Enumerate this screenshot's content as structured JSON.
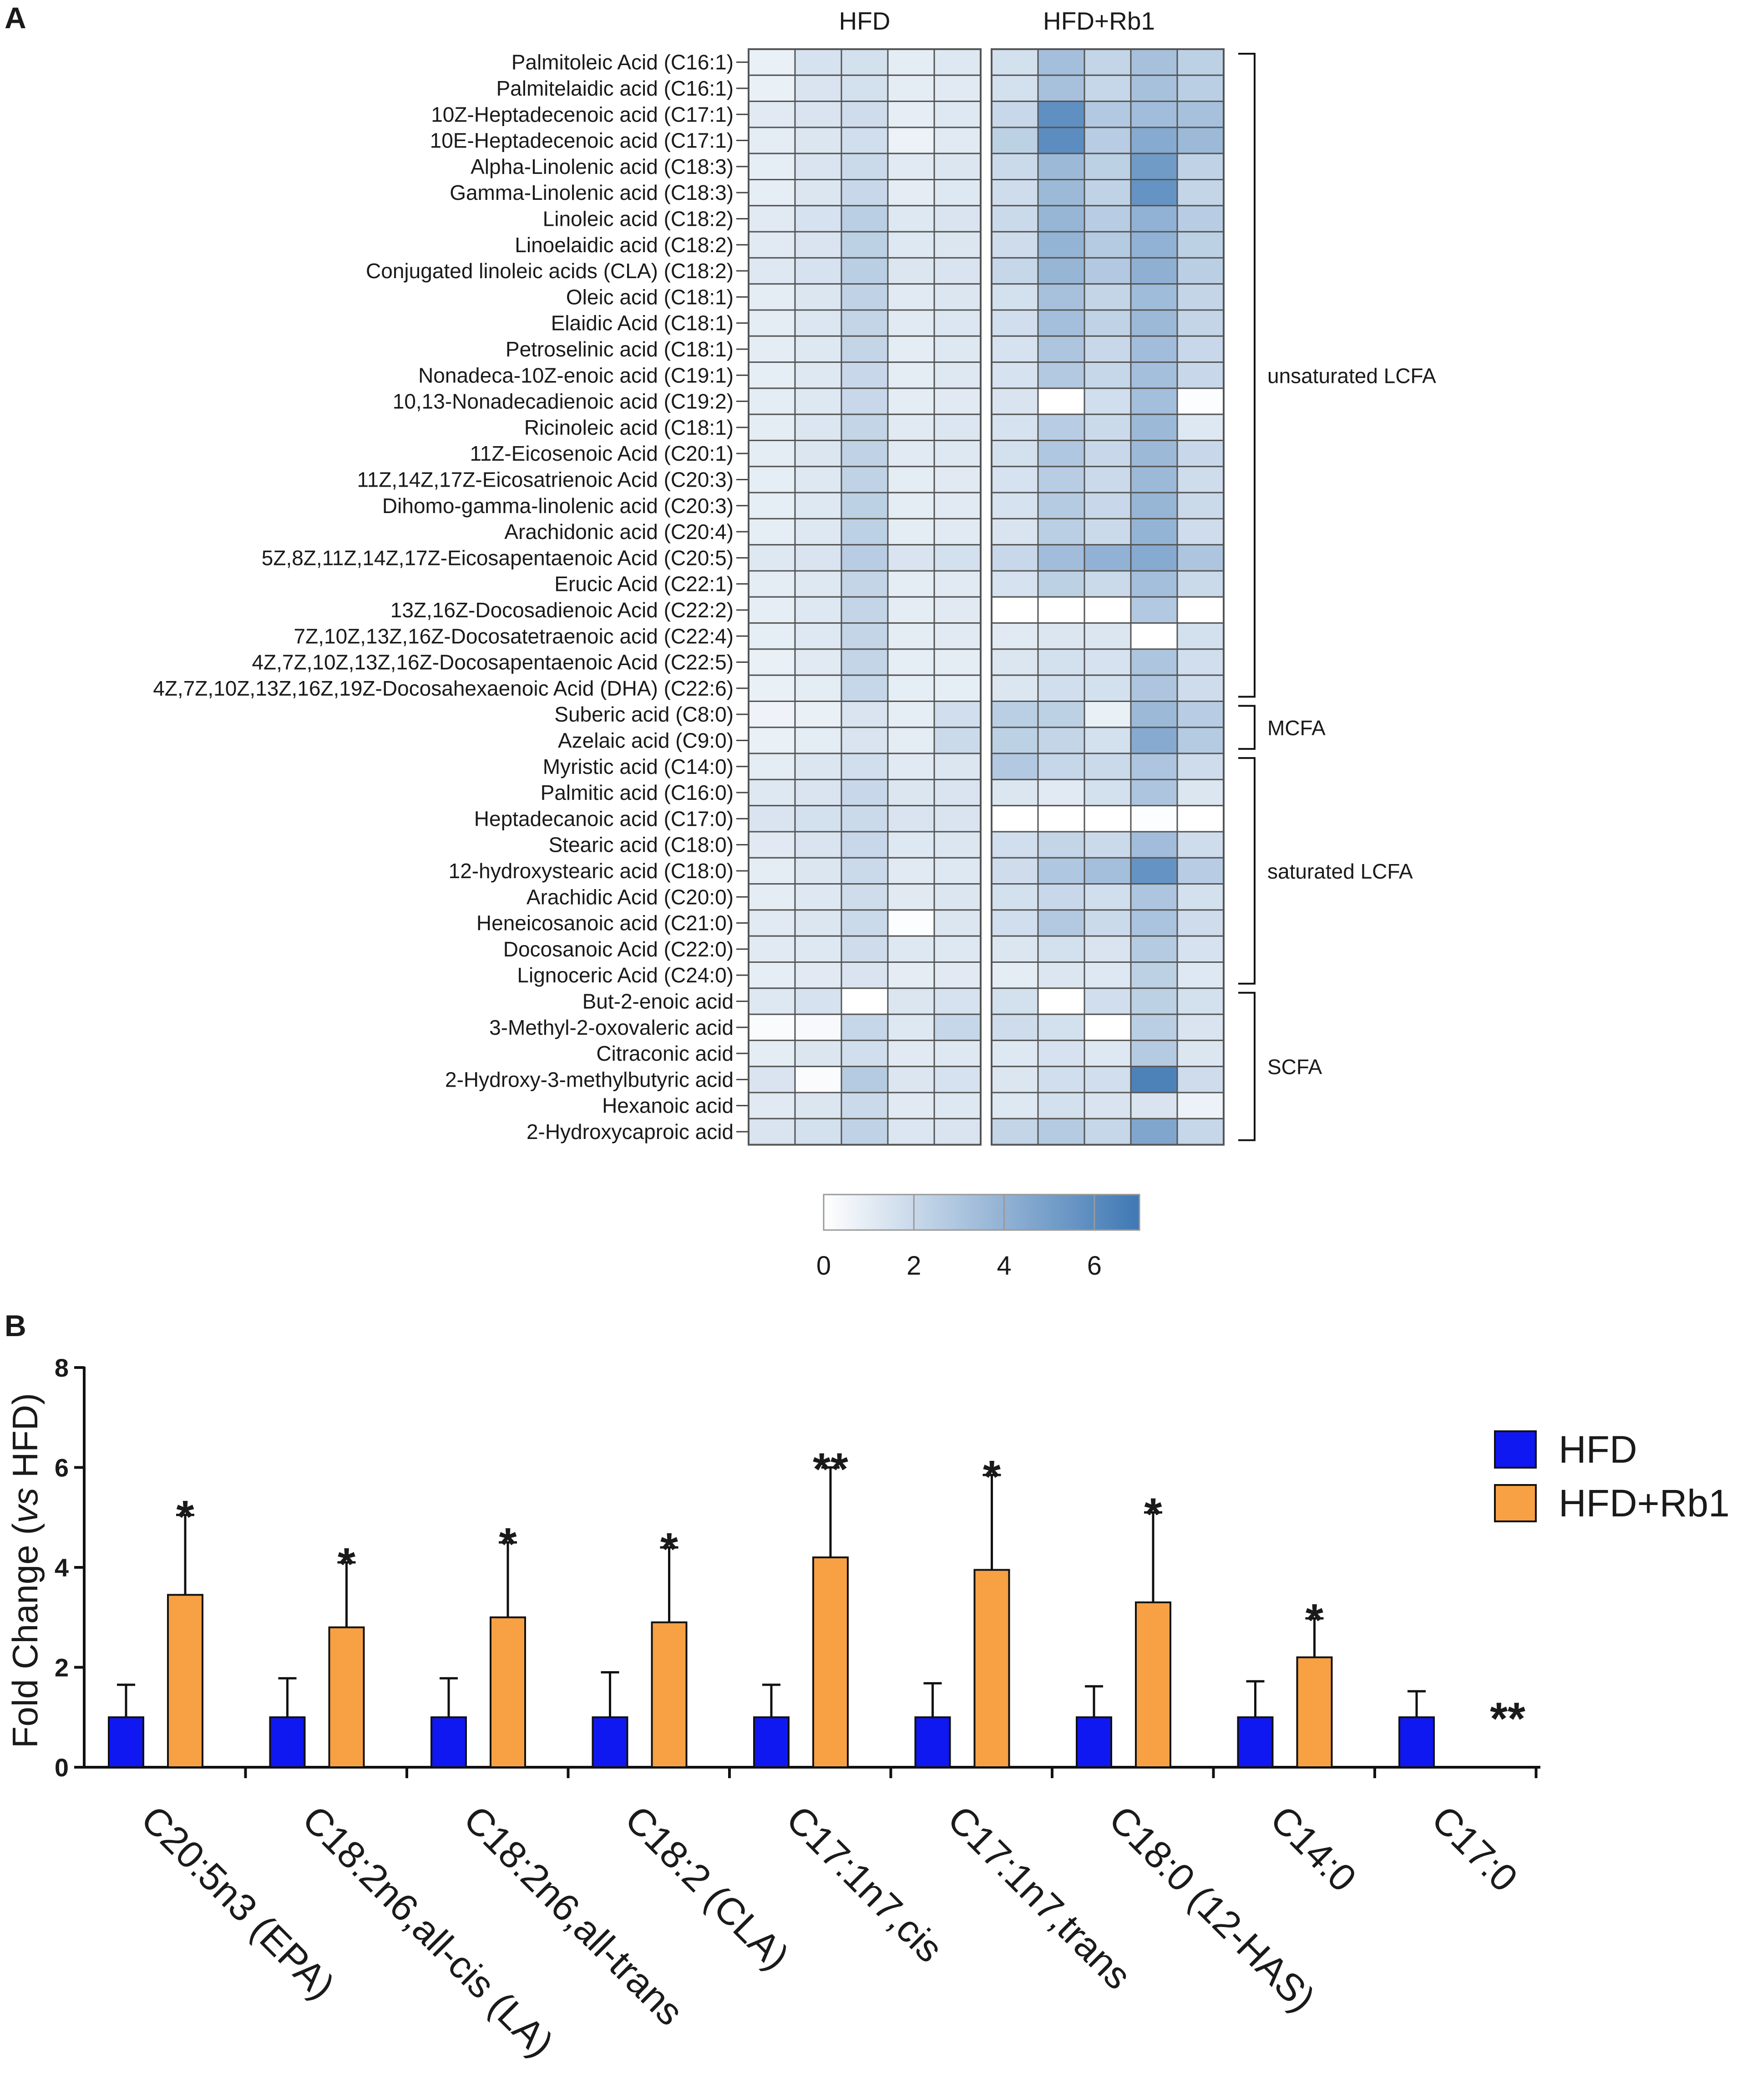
{
  "chart_data": [
    {
      "type": "heatmap",
      "panel": "A",
      "group_labels": [
        "HFD",
        "HFD+Rb1"
      ],
      "rows": [
        "Palmitoleic Acid (C16:1)",
        "Palmitelaidic acid (C16:1)",
        "10Z-Heptadecenoic acid (C17:1)",
        "10E-Heptadecenoic acid (C17:1)",
        "Alpha-Linolenic acid (C18:3)",
        "Gamma-Linolenic acid (C18:3)",
        "Linoleic acid (C18:2)",
        "Linoelaidic acid (C18:2)",
        "Conjugated linoleic acids (CLA) (C18:2)",
        "Oleic acid (C18:1)",
        "Elaidic Acid (C18:1)",
        "Petroselinic acid (C18:1)",
        "Nonadeca-10Z-enoic acid (C19:1)",
        "10,13-Nonadecadienoic acid (C19:2)",
        "Ricinoleic acid (C18:1)",
        "11Z-Eicosenoic Acid (C20:1)",
        "11Z,14Z,17Z-Eicosatrienoic Acid (C20:3)",
        "Dihomo-gamma-linolenic acid (C20:3)",
        "Arachidonic acid (C20:4)",
        "5Z,8Z,11Z,14Z,17Z-Eicosapentaenoic Acid (C20:5)",
        "Erucic Acid (C22:1)",
        "13Z,16Z-Docosadienoic Acid (C22:2)",
        "7Z,10Z,13Z,16Z-Docosatetraenoic acid (C22:4)",
        "4Z,7Z,10Z,13Z,16Z-Docosapentaenoic Acid (C22:5)",
        "4Z,7Z,10Z,13Z,16Z,19Z-Docosahexaenoic Acid (DHA) (C22:6)",
        "Suberic acid (C8:0)",
        "Azelaic acid (C9:0)",
        "Myristic acid (C14:0)",
        "Palmitic acid (C16:0)",
        "Heptadecanoic acid (C17:0)",
        "Stearic acid (C18:0)",
        "12-hydroxystearic acid (C18:0)",
        "Arachidic Acid (C20:0)",
        "Heneicosanoic acid (C21:0)",
        "Docosanoic Acid (C22:0)",
        "Lignoceric Acid (C24:0)",
        "But-2-enoic acid",
        "3-Methyl-2-oxovaleric acid",
        "Citraconic acid",
        "2-Hydroxy-3-methylbutyric acid",
        "Hexanoic acid",
        "2-Hydroxycaproic acid"
      ],
      "values": [
        [
          0.8,
          1.5,
          1.6,
          1.0,
          1.2,
          1.6,
          3.3,
          2.2,
          3.2,
          2.4
        ],
        [
          0.8,
          1.4,
          1.6,
          1.0,
          1.1,
          1.6,
          3.2,
          2.1,
          3.2,
          2.5
        ],
        [
          1.1,
          1.4,
          1.8,
          0.9,
          1.2,
          2.0,
          5.8,
          2.8,
          3.4,
          3.2
        ],
        [
          1.0,
          1.3,
          1.7,
          0.7,
          1.1,
          2.4,
          5.9,
          2.6,
          4.4,
          3.6
        ],
        [
          0.9,
          1.4,
          1.9,
          1.1,
          1.3,
          1.9,
          3.6,
          2.4,
          5.2,
          2.3
        ],
        [
          0.9,
          1.3,
          2.0,
          1.0,
          1.2,
          1.8,
          3.6,
          2.3,
          5.6,
          2.2
        ],
        [
          1.1,
          1.5,
          2.5,
          1.2,
          1.4,
          1.9,
          3.8,
          2.6,
          4.0,
          2.6
        ],
        [
          1.1,
          1.4,
          2.4,
          1.2,
          1.3,
          1.8,
          3.9,
          2.7,
          4.0,
          2.4
        ],
        [
          1.2,
          1.5,
          2.5,
          1.3,
          1.4,
          2.1,
          3.8,
          2.8,
          4.1,
          2.5
        ],
        [
          1.0,
          1.3,
          2.3,
          1.1,
          1.3,
          1.6,
          3.2,
          2.2,
          3.5,
          2.2
        ],
        [
          1.0,
          1.3,
          2.2,
          1.1,
          1.3,
          1.7,
          3.3,
          2.3,
          3.6,
          2.2
        ],
        [
          1.0,
          1.2,
          2.2,
          1.0,
          1.2,
          1.5,
          3.0,
          2.0,
          3.4,
          2.0
        ],
        [
          0.9,
          1.2,
          2.0,
          1.0,
          1.2,
          1.5,
          2.8,
          2.1,
          3.3,
          2.0
        ],
        [
          1.0,
          1.2,
          2.0,
          1.0,
          1.1,
          1.4,
          0.0,
          1.7,
          3.3,
          0.1
        ],
        [
          1.0,
          1.3,
          2.2,
          1.1,
          1.3,
          1.5,
          2.6,
          1.9,
          3.6,
          1.2
        ],
        [
          1.0,
          1.3,
          2.3,
          1.1,
          1.2,
          1.6,
          2.9,
          2.0,
          3.6,
          2.0
        ],
        [
          0.9,
          1.2,
          2.3,
          1.0,
          1.1,
          1.5,
          2.6,
          1.9,
          3.6,
          1.8
        ],
        [
          0.9,
          1.2,
          2.4,
          1.0,
          1.1,
          1.5,
          2.7,
          2.0,
          3.8,
          1.9
        ],
        [
          0.9,
          1.2,
          2.4,
          1.0,
          1.1,
          1.4,
          2.5,
          1.9,
          3.9,
          1.8
        ],
        [
          1.2,
          1.4,
          2.6,
          1.4,
          1.6,
          2.0,
          3.4,
          4.0,
          4.4,
          3.0
        ],
        [
          1.0,
          1.2,
          2.2,
          1.0,
          1.1,
          1.5,
          2.4,
          1.9,
          3.3,
          1.9
        ],
        [
          0.9,
          1.2,
          2.2,
          1.0,
          1.1,
          0.0,
          0.0,
          0.0,
          2.8,
          0.0
        ],
        [
          0.9,
          1.2,
          2.2,
          1.0,
          1.1,
          1.1,
          1.3,
          1.3,
          0.0,
          1.6
        ],
        [
          0.8,
          1.1,
          2.2,
          0.9,
          1.0,
          1.3,
          1.6,
          1.5,
          3.0,
          1.7
        ],
        [
          0.8,
          1.0,
          2.1,
          0.9,
          0.9,
          1.3,
          1.7,
          1.6,
          3.0,
          1.8
        ],
        [
          0.6,
          0.8,
          1.4,
          0.9,
          1.7,
          2.5,
          2.4,
          0.8,
          3.6,
          2.6
        ],
        [
          0.8,
          1.0,
          1.4,
          1.0,
          1.9,
          2.4,
          2.2,
          1.6,
          4.4,
          2.7
        ],
        [
          1.0,
          1.3,
          1.7,
          1.1,
          1.3,
          2.8,
          2.1,
          1.9,
          3.0,
          1.8
        ],
        [
          1.2,
          1.4,
          2.0,
          1.3,
          1.4,
          1.3,
          1.1,
          1.6,
          3.0,
          1.3
        ],
        [
          1.4,
          1.6,
          1.9,
          1.4,
          1.4,
          0.0,
          0.0,
          0.0,
          0.1,
          0.0
        ],
        [
          1.1,
          1.4,
          2.0,
          1.2,
          1.3,
          1.7,
          2.2,
          1.9,
          3.4,
          1.8
        ],
        [
          1.0,
          1.3,
          1.9,
          1.1,
          1.2,
          1.8,
          2.9,
          3.3,
          5.6,
          2.6
        ],
        [
          1.0,
          1.2,
          1.8,
          1.1,
          1.3,
          1.6,
          2.0,
          1.7,
          3.0,
          1.6
        ],
        [
          1.1,
          1.3,
          1.9,
          0.1,
          1.3,
          1.7,
          2.8,
          1.9,
          3.1,
          1.8
        ],
        [
          1.1,
          1.2,
          1.8,
          1.2,
          1.2,
          1.3,
          1.6,
          1.4,
          2.7,
          1.5
        ],
        [
          0.9,
          1.1,
          1.4,
          1.0,
          1.1,
          1.0,
          1.3,
          1.2,
          2.4,
          1.2
        ],
        [
          1.2,
          1.5,
          0.0,
          1.3,
          1.5,
          1.6,
          0.0,
          1.7,
          2.4,
          1.6
        ],
        [
          0.2,
          0.3,
          2.1,
          1.2,
          2.1,
          1.8,
          1.6,
          0.0,
          2.5,
          1.4
        ],
        [
          1.0,
          1.3,
          1.7,
          1.1,
          1.2,
          1.2,
          1.5,
          1.2,
          2.7,
          1.3
        ],
        [
          1.4,
          0.2,
          2.7,
          1.3,
          1.5,
          1.3,
          1.7,
          1.7,
          6.5,
          1.8
        ],
        [
          1.1,
          1.3,
          1.9,
          1.1,
          1.2,
          1.2,
          1.6,
          1.4,
          1.4,
          0.7
        ],
        [
          1.4,
          1.6,
          2.3,
          1.3,
          1.4,
          2.2,
          2.7,
          2.1,
          4.6,
          2.1
        ]
      ],
      "brackets": [
        {
          "label": "unsaturated LCFA",
          "from_row": 0,
          "to_row": 24
        },
        {
          "label": "MCFA",
          "from_row": 25,
          "to_row": 26
        },
        {
          "label": "saturated LCFA",
          "from_row": 27,
          "to_row": 35
        },
        {
          "label": "SCFA",
          "from_row": 36,
          "to_row": 41
        }
      ],
      "colorbar": {
        "min": 0,
        "max": 7,
        "ticks": [
          "0",
          "2",
          "4",
          "6"
        ],
        "color_low": "#ffffff",
        "color_high": "#3f78b4"
      }
    },
    {
      "type": "bar",
      "panel": "B",
      "categories": [
        "C20:5n3 (EPA)",
        "C18:2n6,all-cis (LA)",
        "C18:2n6,all-trans",
        "C18:2 (CLA)",
        "C17:1n7,cis",
        "C17:1n7,trans",
        "C18:0 (12-HAS)",
        "C14:0",
        "C17:0"
      ],
      "series": [
        {
          "name": "HFD",
          "color": "#0f18f0",
          "values": [
            1,
            1,
            1,
            1,
            1,
            1,
            1,
            1,
            1
          ],
          "errors": [
            0.65,
            0.78,
            0.78,
            0.9,
            0.65,
            0.68,
            0.62,
            0.72,
            0.52
          ]
        },
        {
          "name": "HFD+Rb1",
          "color": "#f7a144",
          "values": [
            3.45,
            2.8,
            3.0,
            2.9,
            4.2,
            3.95,
            3.3,
            2.2,
            0
          ],
          "errors": [
            1.6,
            1.3,
            1.5,
            1.5,
            1.8,
            1.9,
            1.8,
            0.78,
            0
          ]
        }
      ],
      "significance": [
        "*",
        "*",
        "*",
        "*",
        "**",
        "*",
        "*",
        "*",
        "**"
      ],
      "ylabel_parts": [
        "Fold Change (",
        "vs",
        " HFD)"
      ],
      "ylim": [
        0,
        8
      ],
      "yticks": [
        "0",
        "2",
        "4",
        "6",
        "8"
      ]
    }
  ]
}
